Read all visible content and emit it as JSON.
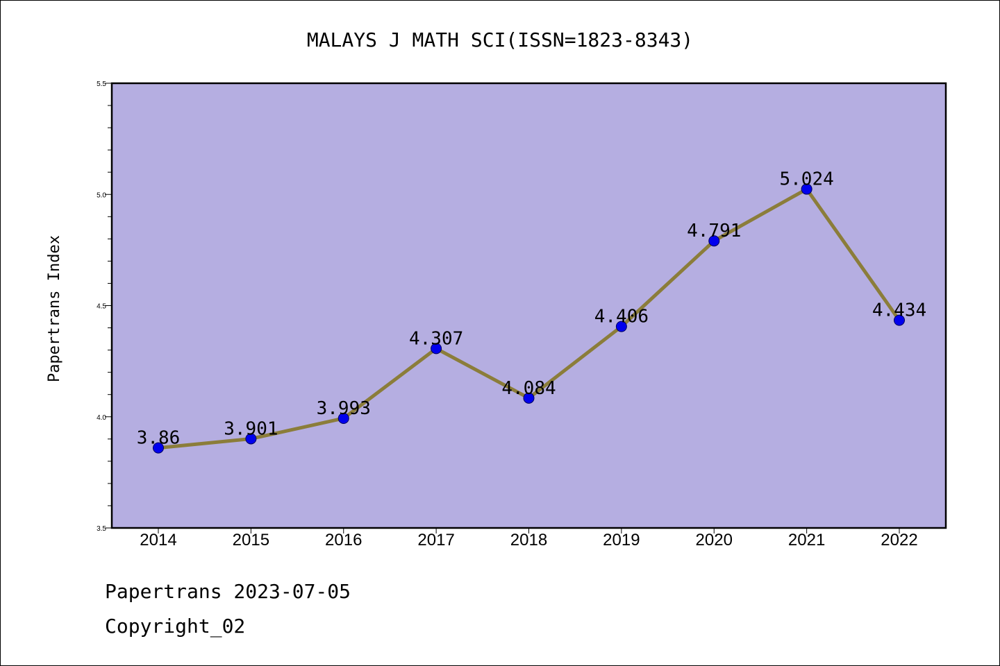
{
  "chart_data": {
    "type": "line",
    "title": "MALAYS J MATH SCI(ISSN=1823-8343)",
    "xlabel": "",
    "ylabel": "Papertrans Index",
    "categories": [
      "2014",
      "2015",
      "2016",
      "2017",
      "2018",
      "2019",
      "2020",
      "2021",
      "2022"
    ],
    "series": [
      {
        "values": [
          3.86,
          3.901,
          3.993,
          4.307,
          4.084,
          4.406,
          4.791,
          5.024,
          4.434
        ],
        "labels": [
          "3.86",
          "3.901",
          "3.993",
          "4.307",
          "4.084",
          "4.406",
          "4.791",
          "5.024",
          "4.434"
        ]
      }
    ],
    "ylim": [
      3.5,
      5.5
    ],
    "yticks": [
      "3.5",
      "4.0",
      "4.5",
      "5.0",
      "5.5"
    ],
    "grid": false,
    "colors": {
      "plot_background": "#b5aee1",
      "line": "#8b7d3a",
      "marker": "#0000ee"
    }
  },
  "footer": {
    "line1": "Papertrans 2023-07-05",
    "line2": "Copyright_02"
  }
}
